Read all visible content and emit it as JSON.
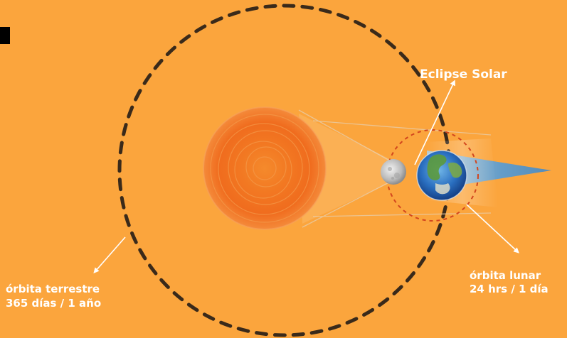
{
  "colors": {
    "background": "#fba53d",
    "earth_orbit": "#3a2a1a",
    "moon_orbit": "#d2461e",
    "sun_core": "#f2761e",
    "label": "#ffffff",
    "shadow_cone": "#4a9be0"
  },
  "labels": {
    "eclipse": "Eclipse Solar",
    "earth_orbit_line1": "órbita terrestre",
    "earth_orbit_line2": "365 días / 1 año",
    "moon_orbit_line1": "órbita lunar",
    "moon_orbit_line2": "24 hrs / 1 día"
  },
  "icons": {
    "corner": "black-square-icon",
    "sun": "sun-icon",
    "earth": "earth-icon",
    "moon": "moon-icon"
  }
}
